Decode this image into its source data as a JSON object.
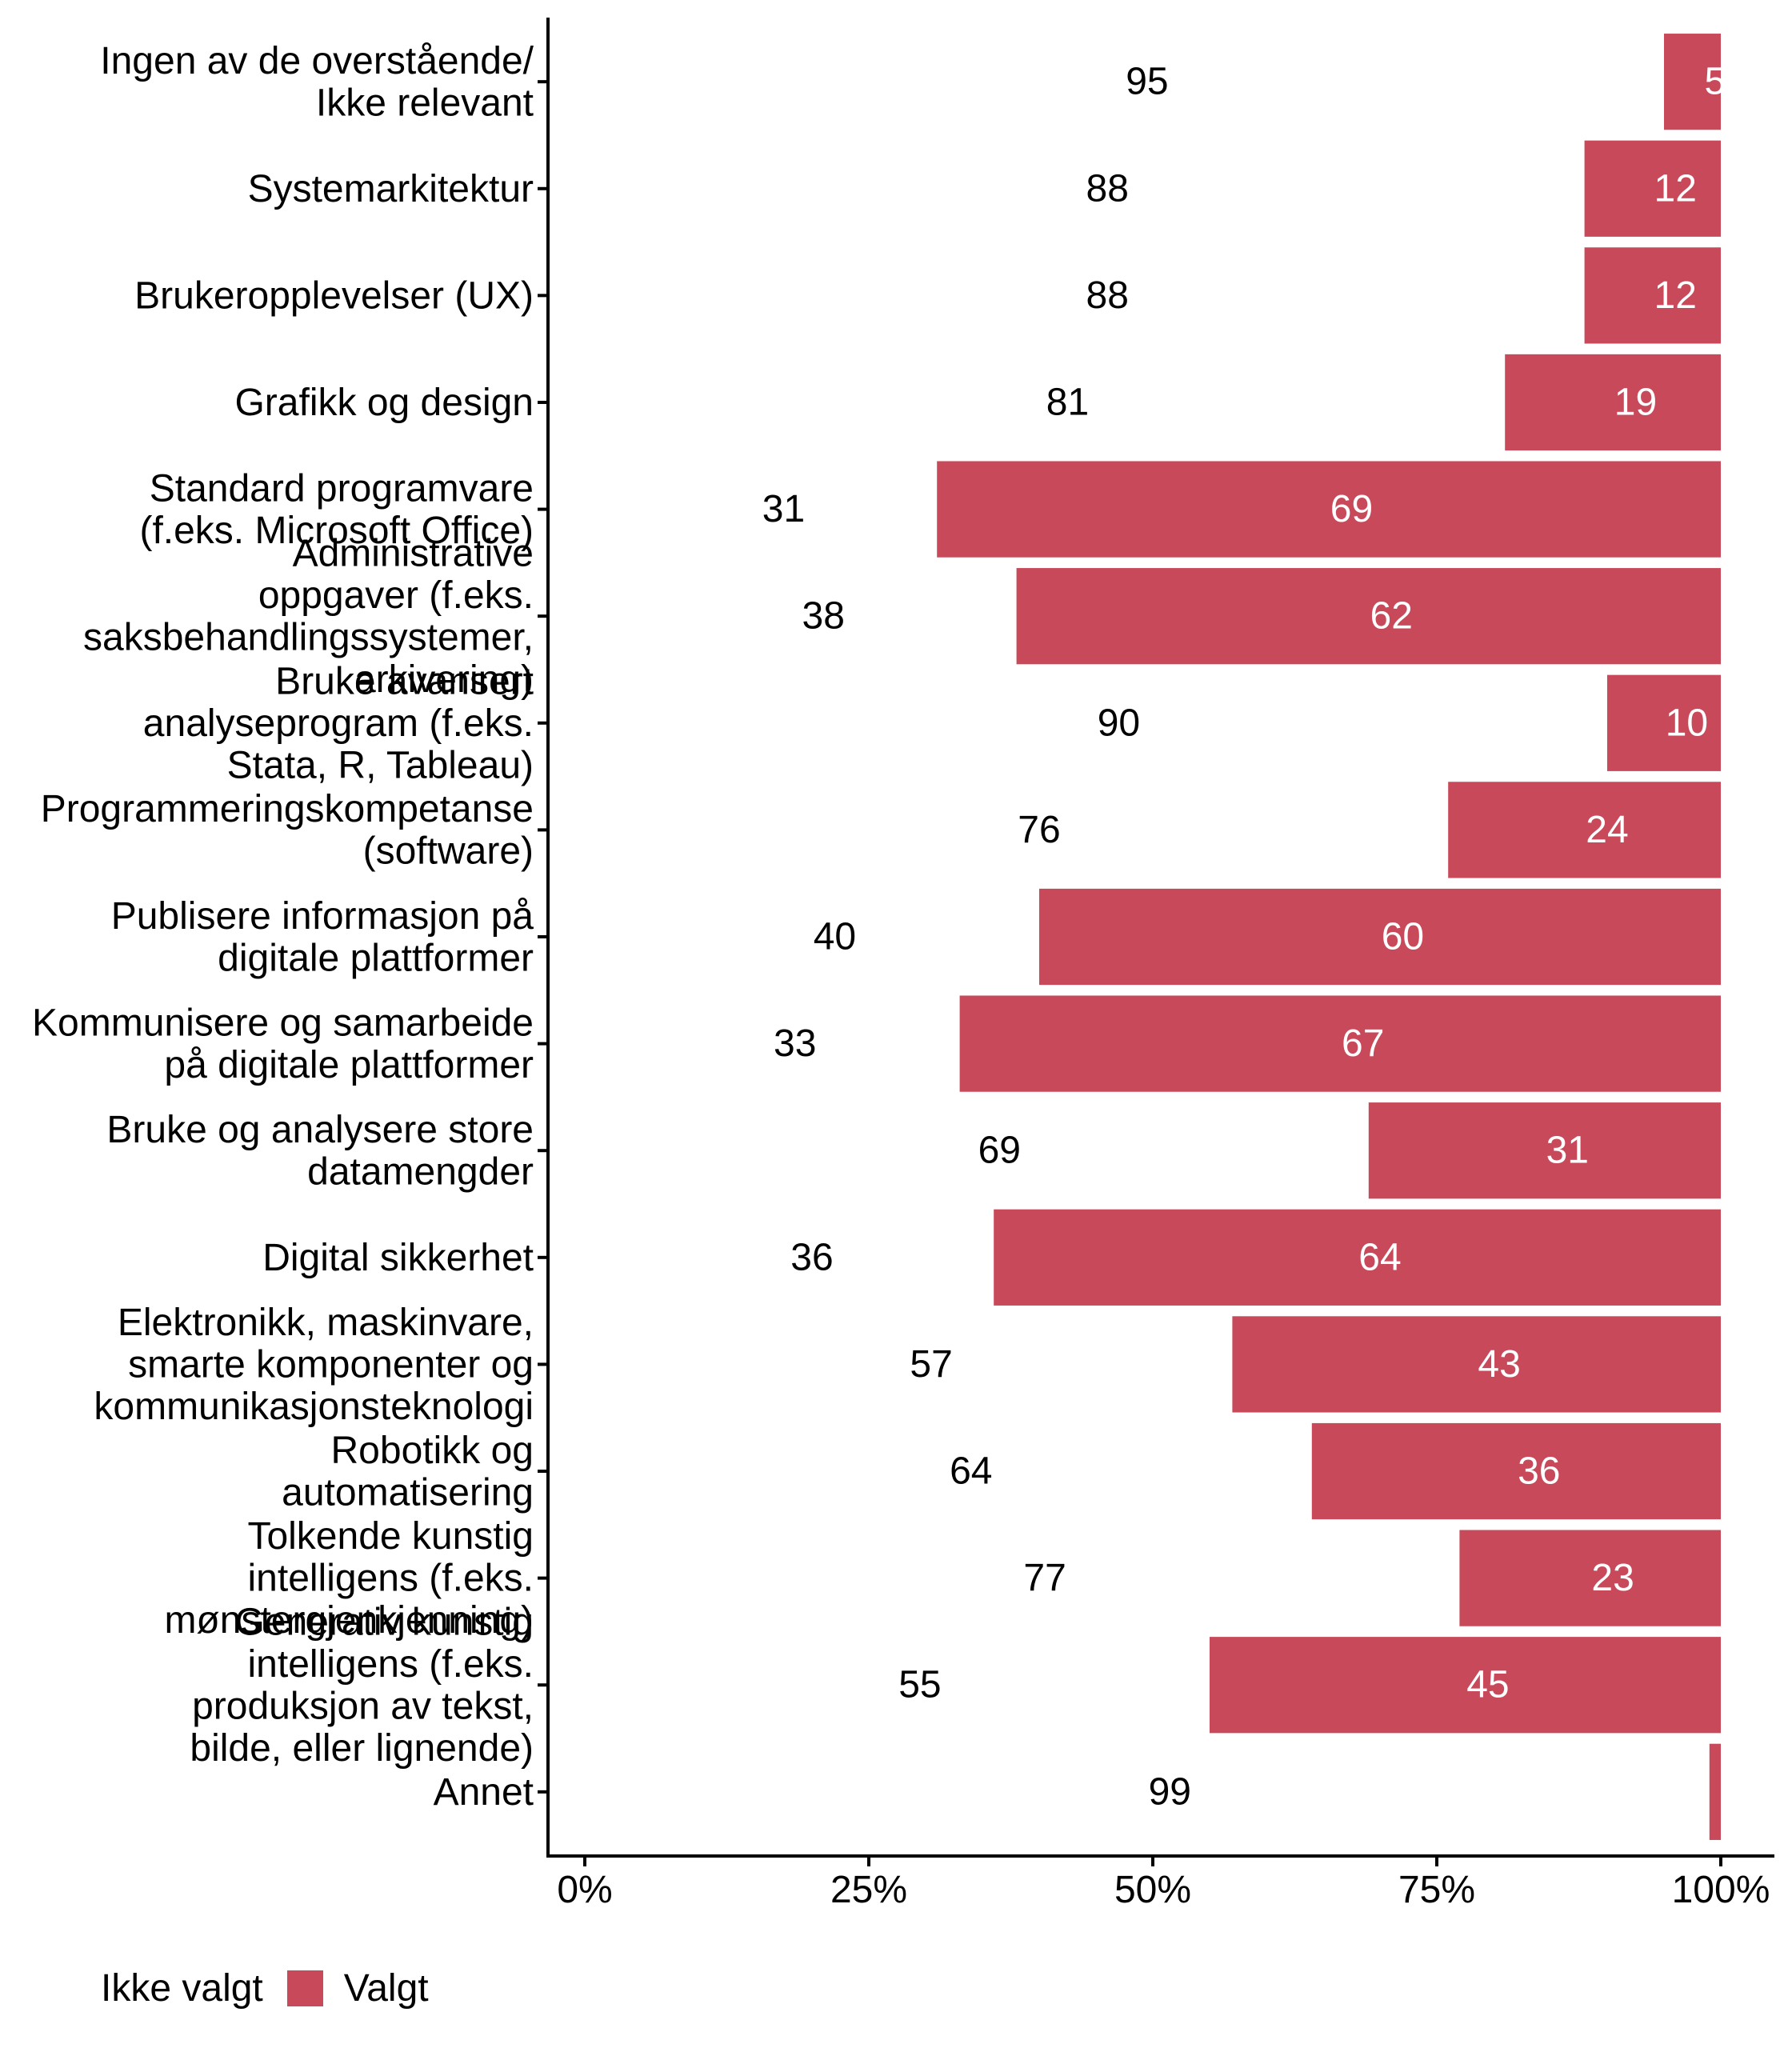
{
  "chart_data": {
    "type": "bar",
    "orientation": "horizontal",
    "stacked": "percent",
    "title": "",
    "xlabel": "",
    "ylabel": "",
    "xlim": [
      0,
      100
    ],
    "x_ticks": [
      "0%",
      "25%",
      "50%",
      "75%",
      "100%"
    ],
    "grid": false,
    "legend_position": "bottom-left",
    "categories": [
      "Ingen av de overstående/ Ikke relevant",
      "Systemarkitektur",
      "Brukeropplevelser (UX)",
      "Grafikk og design",
      "Standard programvare (f.eks. Microsoft Office)",
      "Administrative oppgaver (f.eks. saksbehandlingssystemer, arkivering)",
      "Bruke avansert analyseprogram (f.eks. Stata, R, Tableau)",
      "Programmeringskompetanse (software)",
      "Publisere informasjon på digitale plattformer",
      "Kommunisere og samarbeide på digitale plattformer",
      "Bruke og analysere store datamengder",
      "Digital sikkerhet",
      "Elektronikk, maskinvare, smarte komponenter og kommunikasjonsteknologi",
      "Robotikk og automatisering",
      "Tolkende kunstig intelligens (f.eks. mønstergjenkjenning)",
      "Generativ kunstig intelligens (f.eks. produksjon av tekst, bilde, eller lignende)",
      "Annet"
    ],
    "category_lines": [
      [
        "Ingen av de overstående/",
        "Ikke relevant"
      ],
      [
        "Systemarkitektur"
      ],
      [
        "Brukeropplevelser (UX)"
      ],
      [
        "Grafikk og design"
      ],
      [
        "Standard programvare",
        "(f.eks. Microsoft Office)"
      ],
      [
        "Administrative",
        "oppgaver (f.eks.",
        "saksbehandlingssystemer,",
        "arkivering)"
      ],
      [
        "Bruke avansert",
        "analyseprogram (f.eks.",
        "Stata, R, Tableau)"
      ],
      [
        "Programmeringskompetanse",
        "(software)"
      ],
      [
        "Publisere informasjon på",
        "digitale plattformer"
      ],
      [
        "Kommunisere og samarbeide",
        "på digitale plattformer"
      ],
      [
        "Bruke og analysere store",
        "datamengder"
      ],
      [
        "Digital sikkerhet"
      ],
      [
        "Elektronikk, maskinvare,",
        "smarte komponenter og",
        "kommunikasjonsteknologi"
      ],
      [
        "Robotikk og",
        "automatisering"
      ],
      [
        "Tolkende kunstig",
        "intelligens (f.eks.",
        "mønstergjenkjenning)"
      ],
      [
        "Generativ kunstig",
        "intelligens (f.eks.",
        "produksjon av tekst,",
        "bilde, eller lignende)"
      ],
      [
        "Annet"
      ]
    ],
    "series": [
      {
        "name": "Ikke valgt",
        "color": "#FFFFFF",
        "label_color": "#000000",
        "values": [
          95,
          88,
          88,
          81,
          31,
          38,
          90,
          76,
          40,
          33,
          69,
          36,
          57,
          64,
          77,
          55,
          99
        ]
      },
      {
        "name": "Valgt",
        "color": "#C84A5A",
        "label_color": "#FFFFFF",
        "values": [
          5,
          12,
          12,
          19,
          69,
          62,
          10,
          24,
          60,
          67,
          31,
          64,
          43,
          36,
          23,
          45,
          1
        ]
      }
    ]
  },
  "legend": {
    "items": [
      {
        "label": "Ikke valgt",
        "swatch": false
      },
      {
        "label": "Valgt",
        "swatch": true,
        "color": "#C84A5A"
      }
    ]
  }
}
